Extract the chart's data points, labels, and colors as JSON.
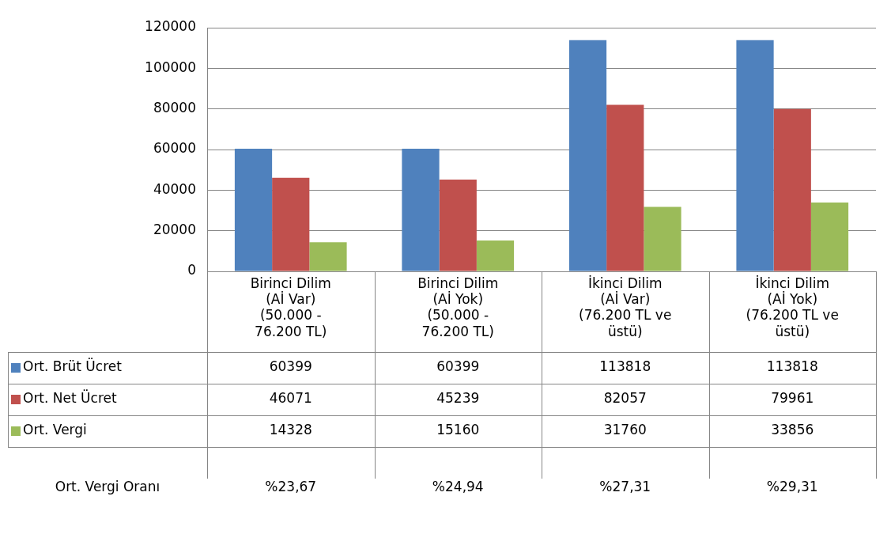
{
  "chart_data": {
    "type": "bar",
    "categories": [
      "Birinci Dilim\n(Aİ Var)\n(50.000 -\n76.200 TL)",
      "Birinci Dilim\n(Aİ Yok)\n(50.000 -\n76.200 TL)",
      "İkinci Dilim\n(Aİ Var)\n(76.200 TL ve\nüstü)",
      "İkinci Dilim\n(Aİ Yok)\n(76.200 TL ve\nüstü)"
    ],
    "series": [
      {
        "name": "Ort. Brüt Ücret",
        "color": "#4f81bd",
        "values": [
          60399,
          60399,
          113818,
          113818
        ]
      },
      {
        "name": "Ort. Net Ücret",
        "color": "#c0504d",
        "values": [
          46071,
          45239,
          82057,
          79961
        ]
      },
      {
        "name": "Ort. Vergi",
        "color": "#9bbb59",
        "values": [
          14328,
          15160,
          31760,
          33856
        ]
      }
    ],
    "ylim": [
      0,
      120000
    ],
    "yticks": [
      0,
      20000,
      40000,
      60000,
      80000,
      100000,
      120000
    ],
    "grid": "y",
    "legend": "bottom",
    "data_labels": true,
    "annotations": [
      "Ort. Vergi Oranı",
      "%23,67",
      "%24,94",
      "%27,31",
      "%29,31"
    ]
  }
}
